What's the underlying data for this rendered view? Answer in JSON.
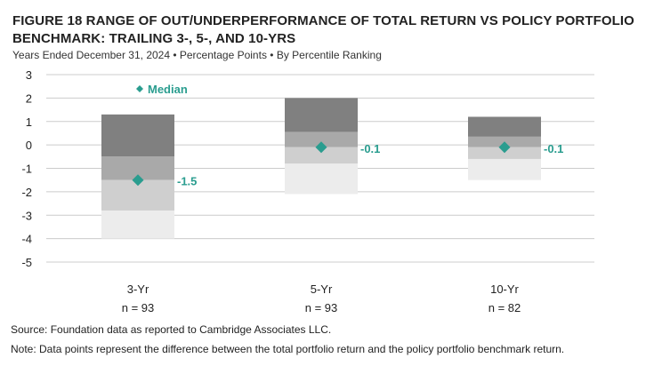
{
  "figure": {
    "title": "FIGURE 18   RANGE OF OUT/UNDERPERFORMANCE OF TOTAL RETURN VS POLICY PORTFOLIO BENCHMARK: TRAILING 3-, 5-, AND 10-YRS",
    "subtitle": "Years Ended December 31, 2024 • Percentage Points • By Percentile Ranking"
  },
  "footer": {
    "source": "Source: Foundation data as reported to Cambridge Associates LLC.",
    "note": "Note: Data points represent the difference between the total portfolio return and the policy portfolio benchmark return."
  },
  "chart_data": {
    "type": "bar",
    "ylim": [
      -5,
      3
    ],
    "yticks": [
      "3",
      "2",
      "1",
      "0",
      "-1",
      "-2",
      "-3",
      "-4",
      "-5"
    ],
    "grid": true,
    "legend": {
      "label": "Median",
      "placement": "top-left"
    },
    "colors": {
      "band1": "#808080",
      "band2": "#a9a9a9",
      "band3": "#cfcfcf",
      "band4": "#ececec",
      "median": "#2a9d8f",
      "grid": "#cccccc"
    },
    "categories": [
      {
        "label": "3-Yr",
        "n": "n = 93",
        "bands": [
          1.3,
          -0.5,
          -1.5,
          -2.8,
          -4.0
        ],
        "median": -1.5,
        "median_label": "-1.5"
      },
      {
        "label": "5-Yr",
        "n": "n = 93",
        "bands": [
          2.0,
          0.55,
          -0.1,
          -0.8,
          -2.1
        ],
        "median": -0.1,
        "median_label": "-0.1"
      },
      {
        "label": "10-Yr",
        "n": "n = 82",
        "bands": [
          1.2,
          0.35,
          -0.1,
          -0.6,
          -1.5
        ],
        "median": -0.1,
        "median_label": "-0.1"
      }
    ]
  }
}
